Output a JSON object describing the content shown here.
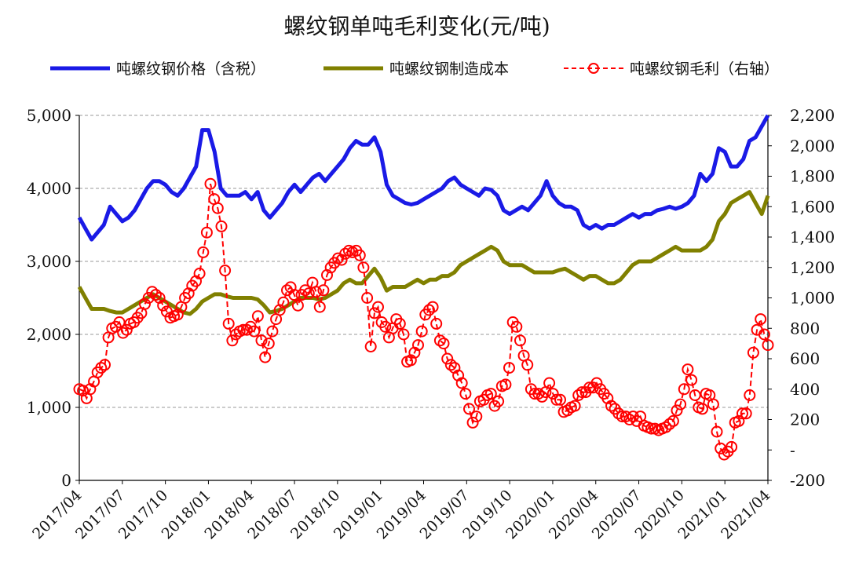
{
  "chart_data": {
    "type": "line",
    "title": "螺纹钢单吨毛利变化(元/吨)",
    "x_ticks": [
      "2017/04",
      "2017/07",
      "2017/10",
      "2018/01",
      "2018/04",
      "2018/07",
      "2018/10",
      "2019/01",
      "2019/04",
      "2019/07",
      "2019/10",
      "2020/01",
      "2020/04",
      "2020/07",
      "2020/10",
      "2021/01",
      "2021/04"
    ],
    "left_axis": {
      "ylim": [
        0,
        5000
      ],
      "ticks": [
        "0",
        "1,000",
        "2,000",
        "3,000",
        "4,000",
        "5,000"
      ]
    },
    "right_axis": {
      "ylim": [
        -200,
        2200
      ],
      "ticks": [
        "-200",
        "-",
        "200",
        "400",
        "600",
        "800",
        "1,000",
        "1,200",
        "1,400",
        "1,600",
        "1,800",
        "2,000",
        "2,200"
      ]
    },
    "grid": "horizontal dashed",
    "legend_position": "top",
    "series": [
      {
        "name": "吨螺纹钢价格（含税）",
        "axis": "left",
        "color": "#1a1ae6",
        "style": "solid",
        "points": [
          [
            0,
            3600
          ],
          [
            0.5,
            3450
          ],
          [
            1,
            3300
          ],
          [
            1.5,
            3400
          ],
          [
            2,
            3500
          ],
          [
            2.5,
            3750
          ],
          [
            3,
            3650
          ],
          [
            3.5,
            3550
          ],
          [
            4,
            3600
          ],
          [
            4.5,
            3700
          ],
          [
            5,
            3850
          ],
          [
            5.5,
            4000
          ],
          [
            6,
            4100
          ],
          [
            6.5,
            4100
          ],
          [
            7,
            4050
          ],
          [
            7.5,
            3950
          ],
          [
            8,
            3900
          ],
          [
            8.5,
            4000
          ],
          [
            9,
            4150
          ],
          [
            9.5,
            4300
          ],
          [
            10,
            4800
          ],
          [
            10.5,
            4800
          ],
          [
            11,
            4500
          ],
          [
            11.5,
            4000
          ],
          [
            12,
            3900
          ],
          [
            12.5,
            3900
          ],
          [
            13,
            3900
          ],
          [
            13.5,
            3950
          ],
          [
            14,
            3850
          ],
          [
            14.5,
            3950
          ],
          [
            15,
            3700
          ],
          [
            15.5,
            3600
          ],
          [
            16,
            3700
          ],
          [
            16.5,
            3800
          ],
          [
            17,
            3950
          ],
          [
            17.5,
            4050
          ],
          [
            18,
            3950
          ],
          [
            18.5,
            4050
          ],
          [
            19,
            4150
          ],
          [
            19.5,
            4200
          ],
          [
            20,
            4100
          ],
          [
            20.5,
            4200
          ],
          [
            21,
            4300
          ],
          [
            21.5,
            4400
          ],
          [
            22,
            4550
          ],
          [
            22.5,
            4650
          ],
          [
            23,
            4600
          ],
          [
            23.5,
            4600
          ],
          [
            24,
            4700
          ],
          [
            24.5,
            4500
          ],
          [
            25,
            4050
          ],
          [
            25.5,
            3900
          ],
          [
            26,
            3850
          ],
          [
            26.5,
            3800
          ],
          [
            27,
            3780
          ],
          [
            27.5,
            3800
          ],
          [
            28,
            3850
          ],
          [
            28.5,
            3900
          ],
          [
            29,
            3950
          ],
          [
            29.5,
            4000
          ],
          [
            30,
            4100
          ],
          [
            30.5,
            4150
          ],
          [
            31,
            4050
          ],
          [
            31.5,
            4000
          ],
          [
            32,
            3950
          ],
          [
            32.5,
            3900
          ],
          [
            33,
            4000
          ],
          [
            33.5,
            3980
          ],
          [
            34,
            3900
          ],
          [
            34.5,
            3700
          ],
          [
            35,
            3650
          ],
          [
            35.5,
            3700
          ],
          [
            36,
            3750
          ],
          [
            36.5,
            3700
          ],
          [
            37,
            3800
          ],
          [
            37.5,
            3900
          ],
          [
            38,
            4100
          ],
          [
            38.5,
            3900
          ],
          [
            39,
            3800
          ],
          [
            39.5,
            3750
          ],
          [
            40,
            3750
          ],
          [
            40.5,
            3700
          ],
          [
            41,
            3500
          ],
          [
            41.5,
            3450
          ],
          [
            42,
            3500
          ],
          [
            42.5,
            3450
          ],
          [
            43,
            3500
          ],
          [
            43.5,
            3500
          ],
          [
            44,
            3550
          ],
          [
            44.5,
            3600
          ],
          [
            45,
            3650
          ],
          [
            45.5,
            3600
          ],
          [
            46,
            3650
          ],
          [
            46.5,
            3650
          ],
          [
            47,
            3700
          ],
          [
            47.5,
            3720
          ],
          [
            48,
            3750
          ],
          [
            48.5,
            3720
          ],
          [
            49,
            3750
          ],
          [
            49.5,
            3800
          ],
          [
            50,
            3900
          ],
          [
            50.5,
            4200
          ],
          [
            51,
            4100
          ],
          [
            51.5,
            4200
          ],
          [
            52,
            4550
          ],
          [
            52.5,
            4500
          ],
          [
            53,
            4300
          ],
          [
            53.5,
            4300
          ],
          [
            54,
            4400
          ],
          [
            54.5,
            4650
          ],
          [
            55,
            4700
          ],
          [
            55.5,
            4850
          ],
          [
            56,
            5100
          ]
        ]
      },
      {
        "name": "吨螺纹钢制造成本",
        "axis": "left",
        "color": "#808000",
        "style": "solid",
        "points": [
          [
            0,
            2650
          ],
          [
            0.5,
            2500
          ],
          [
            1,
            2350
          ],
          [
            1.5,
            2350
          ],
          [
            2,
            2350
          ],
          [
            2.5,
            2320
          ],
          [
            3,
            2300
          ],
          [
            3.5,
            2300
          ],
          [
            4,
            2350
          ],
          [
            4.5,
            2400
          ],
          [
            5,
            2450
          ],
          [
            5.5,
            2500
          ],
          [
            6,
            2550
          ],
          [
            6.5,
            2500
          ],
          [
            7,
            2450
          ],
          [
            7.5,
            2400
          ],
          [
            8,
            2350
          ],
          [
            8.5,
            2300
          ],
          [
            9,
            2280
          ],
          [
            9.5,
            2350
          ],
          [
            10,
            2450
          ],
          [
            10.5,
            2500
          ],
          [
            11,
            2550
          ],
          [
            11.5,
            2550
          ],
          [
            12,
            2520
          ],
          [
            12.5,
            2500
          ],
          [
            13,
            2500
          ],
          [
            13.5,
            2500
          ],
          [
            14,
            2500
          ],
          [
            14.5,
            2480
          ],
          [
            15,
            2400
          ],
          [
            15.5,
            2300
          ],
          [
            16,
            2320
          ],
          [
            16.5,
            2350
          ],
          [
            17,
            2400
          ],
          [
            17.5,
            2450
          ],
          [
            18,
            2500
          ],
          [
            18.5,
            2500
          ],
          [
            19,
            2500
          ],
          [
            19.5,
            2480
          ],
          [
            20,
            2500
          ],
          [
            20.5,
            2550
          ],
          [
            21,
            2600
          ],
          [
            21.5,
            2700
          ],
          [
            22,
            2750
          ],
          [
            22.5,
            2700
          ],
          [
            23,
            2700
          ],
          [
            23.5,
            2800
          ],
          [
            24,
            2900
          ],
          [
            24.5,
            2780
          ],
          [
            25,
            2600
          ],
          [
            25.5,
            2650
          ],
          [
            26,
            2650
          ],
          [
            26.5,
            2650
          ],
          [
            27,
            2700
          ],
          [
            27.5,
            2750
          ],
          [
            28,
            2700
          ],
          [
            28.5,
            2750
          ],
          [
            29,
            2750
          ],
          [
            29.5,
            2800
          ],
          [
            30,
            2800
          ],
          [
            30.5,
            2850
          ],
          [
            31,
            2950
          ],
          [
            31.5,
            3000
          ],
          [
            32,
            3050
          ],
          [
            32.5,
            3100
          ],
          [
            33,
            3150
          ],
          [
            33.5,
            3200
          ],
          [
            34,
            3150
          ],
          [
            34.5,
            3000
          ],
          [
            35,
            2950
          ],
          [
            35.5,
            2950
          ],
          [
            36,
            2950
          ],
          [
            36.5,
            2900
          ],
          [
            37,
            2850
          ],
          [
            37.5,
            2850
          ],
          [
            38,
            2850
          ],
          [
            38.5,
            2850
          ],
          [
            39,
            2880
          ],
          [
            39.5,
            2900
          ],
          [
            40,
            2850
          ],
          [
            40.5,
            2800
          ],
          [
            41,
            2750
          ],
          [
            41.5,
            2800
          ],
          [
            42,
            2800
          ],
          [
            42.5,
            2750
          ],
          [
            43,
            2700
          ],
          [
            43.5,
            2700
          ],
          [
            44,
            2750
          ],
          [
            44.5,
            2850
          ],
          [
            45,
            2950
          ],
          [
            45.5,
            3000
          ],
          [
            46,
            3000
          ],
          [
            46.5,
            3000
          ],
          [
            47,
            3050
          ],
          [
            47.5,
            3100
          ],
          [
            48,
            3150
          ],
          [
            48.5,
            3200
          ],
          [
            49,
            3150
          ],
          [
            49.5,
            3150
          ],
          [
            50,
            3150
          ],
          [
            50.5,
            3150
          ],
          [
            51,
            3200
          ],
          [
            51.5,
            3300
          ],
          [
            52,
            3550
          ],
          [
            52.5,
            3650
          ],
          [
            53,
            3800
          ],
          [
            53.5,
            3850
          ],
          [
            54,
            3900
          ],
          [
            54.5,
            3950
          ],
          [
            55,
            3800
          ],
          [
            55.5,
            3650
          ],
          [
            56,
            3900
          ]
        ]
      },
      {
        "name": "吨螺纹钢毛利（右轴）",
        "axis": "right",
        "color": "#ff0000",
        "style": "dashed-markers",
        "values": [
          400,
          390,
          340,
          400,
          450,
          510,
          540,
          560,
          740,
          800,
          810,
          840,
          770,
          790,
          830,
          840,
          870,
          900,
          960,
          1000,
          1040,
          1020,
          1000,
          950,
          910,
          870,
          880,
          890,
          940,
          1000,
          1030,
          1080,
          1110,
          1160,
          1300,
          1430,
          1750,
          1650,
          1590,
          1470,
          1180,
          830,
          720,
          760,
          780,
          790,
          790,
          810,
          780,
          880,
          720,
          610,
          700,
          780,
          860,
          920,
          970,
          1050,
          1070,
          1020,
          950,
          1020,
          1050,
          1030,
          1100,
          1040,
          940,
          1050,
          1150,
          1200,
          1230,
          1260,
          1250,
          1290,
          1310,
          1300,
          1310,
          1280,
          1200,
          1000,
          680,
          900,
          940,
          840,
          810,
          740,
          800,
          860,
          830,
          760,
          580,
          590,
          640,
          690,
          780,
          890,
          920,
          940,
          830,
          720,
          700,
          600,
          560,
          540,
          490,
          440,
          370,
          270,
          180,
          220,
          320,
          330,
          360,
          370,
          290,
          320,
          420,
          430,
          540,
          840,
          810,
          720,
          620,
          560,
          400,
          370,
          370,
          350,
          380,
          440,
          370,
          330,
          330,
          250,
          260,
          280,
          290,
          360,
          380,
          380,
          410,
          410,
          440,
          400,
          370,
          340,
          290,
          270,
          240,
          220,
          220,
          200,
          220,
          190,
          220,
          160,
          150,
          140,
          140,
          130,
          140,
          150,
          170,
          190,
          260,
          300,
          400,
          530,
          460,
          360,
          280,
          270,
          370,
          360,
          300,
          120,
          10,
          -30,
          -10,
          20,
          180,
          190,
          240,
          240,
          360,
          640,
          790,
          860,
          760,
          690
        ]
      }
    ]
  }
}
